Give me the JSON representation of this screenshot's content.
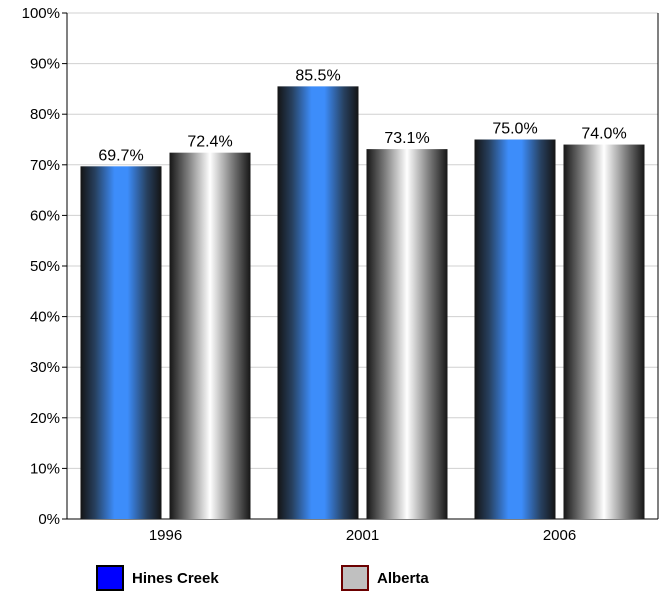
{
  "chart_data": {
    "type": "bar",
    "categories": [
      "1996",
      "2001",
      "2006"
    ],
    "series": [
      {
        "name": "Hines Creek",
        "values": [
          69.7,
          85.5,
          75.0
        ],
        "labels": [
          "69.7%",
          "85.5%",
          "75.0%"
        ],
        "color": "#0000ff"
      },
      {
        "name": "Alberta",
        "values": [
          72.4,
          73.1,
          74.0
        ],
        "labels": [
          "72.4%",
          "73.1%",
          "74.0%"
        ],
        "color": "#c0c0c0"
      }
    ],
    "ylim": [
      0,
      100
    ],
    "y_ticks": [
      "0%",
      "10%",
      "20%",
      "30%",
      "40%",
      "50%",
      "60%",
      "70%",
      "80%",
      "90%",
      "100%"
    ],
    "grid": true,
    "legend": "bottom"
  },
  "legend": {
    "items": [
      {
        "label": "Hines Creek",
        "color": "#0000ff",
        "border": "#000000"
      },
      {
        "label": "Alberta",
        "color": "#c0c0c0",
        "border": "#6b0000"
      }
    ]
  }
}
